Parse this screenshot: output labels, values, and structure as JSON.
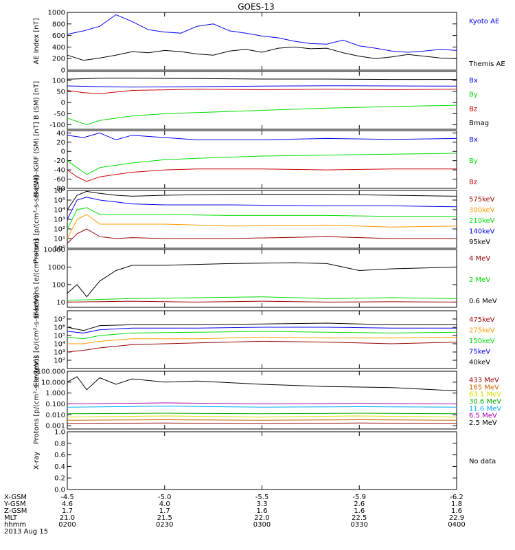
{
  "title": "GOES-13",
  "date": "2013 Aug 15",
  "colors": {
    "black": "#000000",
    "blue": "#0000ee",
    "green": "#00dd00",
    "red": "#cc0000",
    "orange": "#ff9900",
    "yellow": "#dddd00",
    "cyan": "#00aaff",
    "purple": "#aa00aa",
    "darkred": "#990000",
    "darkgreen": "#00aa00",
    "brown": "#cc6600"
  },
  "ephemeris": {
    "labels": [
      "X-GSM",
      "Y-GSM",
      "Z-GSM",
      "MLT",
      "hhmm"
    ],
    "columns": [
      {
        "values": [
          "-4.5",
          "4.6",
          "1.7",
          "21.0",
          "0200"
        ]
      },
      {
        "values": [
          "-5.0",
          "4.0",
          "1.7",
          "21.5",
          "0230"
        ]
      },
      {
        "values": [
          "-5.5",
          "3.3",
          "1.6",
          "22.0",
          "0300"
        ]
      },
      {
        "values": [
          "-5.9",
          "2.6",
          "1.6",
          "22.5",
          "0330"
        ]
      },
      {
        "values": [
          "-6.2",
          "1.8",
          "1.6",
          "22.9",
          "0400"
        ]
      }
    ]
  },
  "chart_data": [
    {
      "type": "line",
      "panel": "ae",
      "ylabel": "AE Index [nT]",
      "ylim": [
        0,
        1000
      ],
      "scale": "linear",
      "ticks": [
        {
          "v": 0,
          "label": "0"
        },
        {
          "v": 200,
          "label": "200"
        },
        {
          "v": 400,
          "label": "400"
        },
        {
          "v": 600,
          "label": "600"
        },
        {
          "v": 800,
          "label": "800"
        },
        {
          "v": 1000,
          "label": "1000"
        }
      ],
      "series": [
        {
          "name": "Kyoto AE",
          "color": "blue",
          "x": [
            0,
            5,
            10,
            15,
            20,
            25,
            30,
            35,
            40,
            45,
            50,
            55,
            60,
            65,
            70,
            75,
            80,
            85,
            90,
            95,
            100,
            105,
            110,
            115,
            120
          ],
          "y": [
            620,
            680,
            760,
            960,
            840,
            700,
            660,
            640,
            760,
            800,
            680,
            640,
            590,
            560,
            500,
            460,
            450,
            520,
            420,
            380,
            330,
            310,
            330,
            360,
            340
          ]
        },
        {
          "name": "Themis AE",
          "color": "black",
          "x": [
            0,
            5,
            10,
            15,
            20,
            25,
            30,
            35,
            40,
            45,
            50,
            55,
            60,
            65,
            70,
            75,
            80,
            85,
            90,
            95,
            100,
            105,
            110,
            115,
            120
          ],
          "y": [
            260,
            170,
            210,
            260,
            320,
            300,
            340,
            320,
            280,
            260,
            330,
            360,
            310,
            380,
            400,
            370,
            380,
            300,
            240,
            200,
            230,
            270,
            240,
            210,
            200
          ]
        }
      ]
    },
    {
      "type": "line",
      "panel": "bsm",
      "ylabel": "B (SM) [nT]",
      "ylim": [
        -120,
        140
      ],
      "scale": "linear",
      "ticks": [
        {
          "v": -100,
          "label": "-100"
        },
        {
          "v": -50,
          "label": "-50"
        },
        {
          "v": 0,
          "label": "0"
        },
        {
          "v": 50,
          "label": "50"
        },
        {
          "v": 100,
          "label": "100"
        }
      ],
      "series": [
        {
          "name": "Bx",
          "color": "blue",
          "x": [
            0,
            10,
            20,
            40,
            60,
            80,
            100,
            120
          ],
          "y": [
            75,
            72,
            70,
            72,
            74,
            76,
            75,
            74
          ]
        },
        {
          "name": "By",
          "color": "green",
          "x": [
            0,
            3,
            6,
            10,
            20,
            30,
            40,
            60,
            80,
            100,
            120
          ],
          "y": [
            -70,
            -85,
            -100,
            -80,
            -60,
            -50,
            -45,
            -35,
            -25,
            -18,
            -12
          ]
        },
        {
          "name": "Bz",
          "color": "red",
          "x": [
            0,
            5,
            10,
            20,
            40,
            60,
            80,
            100,
            120
          ],
          "y": [
            55,
            45,
            40,
            55,
            60,
            58,
            60,
            58,
            60
          ]
        },
        {
          "name": "Bmag",
          "color": "black",
          "x": [
            0,
            10,
            20,
            40,
            60,
            80,
            100,
            120
          ],
          "y": [
            105,
            110,
            110,
            108,
            106,
            106,
            104,
            104
          ]
        }
      ]
    },
    {
      "type": "line",
      "panel": "bigrf",
      "ylabel": "B (SM)-IGRF (SM) [nT]",
      "ylim": [
        -80,
        45
      ],
      "scale": "linear",
      "ticks": [
        {
          "v": -80,
          "label": "-80"
        },
        {
          "v": -60,
          "label": "-60"
        },
        {
          "v": -40,
          "label": "-40"
        },
        {
          "v": -20,
          "label": "-20"
        },
        {
          "v": 0,
          "label": "0"
        },
        {
          "v": 20,
          "label": "20"
        },
        {
          "v": 40,
          "label": "40"
        }
      ],
      "series": [
        {
          "name": "Bx",
          "color": "blue",
          "x": [
            0,
            5,
            10,
            15,
            20,
            30,
            40,
            60,
            80,
            100,
            120
          ],
          "y": [
            35,
            30,
            40,
            25,
            35,
            30,
            25,
            25,
            28,
            26,
            28
          ]
        },
        {
          "name": "By",
          "color": "green",
          "x": [
            0,
            3,
            6,
            10,
            15,
            20,
            30,
            40,
            60,
            80,
            100,
            120
          ],
          "y": [
            -20,
            -35,
            -50,
            -35,
            -30,
            -25,
            -18,
            -15,
            -10,
            -8,
            -6,
            -4
          ]
        },
        {
          "name": "Bz",
          "color": "red",
          "x": [
            0,
            3,
            6,
            10,
            15,
            20,
            30,
            40,
            60,
            80,
            100,
            120
          ],
          "y": [
            -40,
            -55,
            -65,
            -55,
            -50,
            -45,
            -40,
            -38,
            -38,
            -40,
            -38,
            -38
          ]
        }
      ]
    },
    {
      "type": "line",
      "panel": "protons",
      "ylabel": "Protons [p/(cm²-s-sr-keV)]",
      "ylim": [
        0,
        6
      ],
      "scale": "log10",
      "ticks": [
        {
          "v": 0,
          "label": "10⁰"
        },
        {
          "v": 1,
          "label": "10¹"
        },
        {
          "v": 2,
          "label": "10²"
        },
        {
          "v": 3,
          "label": "10³"
        },
        {
          "v": 4,
          "label": "10⁴"
        },
        {
          "v": 5,
          "label": "10⁵"
        },
        {
          "v": 6,
          "label": "10⁶"
        }
      ],
      "series": [
        {
          "name": "575keV",
          "color": "darkred",
          "x": [
            0,
            3,
            6,
            10,
            15,
            20,
            30,
            50,
            80,
            100,
            120
          ],
          "y": [
            0.5,
            1.5,
            2,
            1.2,
            1,
            1.1,
            1,
            1,
            1.2,
            1,
            1
          ]
        },
        {
          "name": "300keV",
          "color": "orange",
          "x": [
            0,
            3,
            6,
            10,
            15,
            20,
            30,
            50,
            80,
            100,
            120
          ],
          "y": [
            1,
            3,
            3.5,
            2.5,
            2.5,
            2.5,
            2.5,
            2.3,
            2.4,
            2.2,
            2.3
          ]
        },
        {
          "name": "210keV",
          "color": "green",
          "x": [
            0,
            3,
            6,
            10,
            15,
            20,
            30,
            50,
            80,
            100,
            120
          ],
          "y": [
            2,
            4,
            4.2,
            3.5,
            3.5,
            3.5,
            3.5,
            3.4,
            3.4,
            3.3,
            3.3
          ]
        },
        {
          "name": "140keV",
          "color": "blue",
          "x": [
            0,
            3,
            6,
            10,
            15,
            20,
            30,
            50,
            80,
            100,
            120
          ],
          "y": [
            3,
            5,
            5.3,
            5,
            4.8,
            4.6,
            4.5,
            4.5,
            4.4,
            4.4,
            4.3
          ]
        },
        {
          "name": "95keV",
          "color": "black",
          "x": [
            0,
            3,
            6,
            10,
            15,
            20,
            30,
            50,
            80,
            100,
            120
          ],
          "y": [
            4,
            5.5,
            5.9,
            5.7,
            5.5,
            5.4,
            5.5,
            5.6,
            5.6,
            5.5,
            5.4
          ]
        }
      ]
    },
    {
      "type": "line",
      "panel": "electrons_mev",
      "ylabel": "Electrons [e/(cm²-s-sr)]",
      "ylim": [
        0.7,
        4
      ],
      "scale": "log10",
      "ticks": [
        {
          "v": 1,
          "label": "10"
        },
        {
          "v": 2,
          "label": "100"
        },
        {
          "v": 3,
          "label": "1000"
        },
        {
          "v": 4,
          "label": "10000"
        }
      ],
      "series": [
        {
          "name": "4 MeV",
          "color": "darkred",
          "x": [
            0,
            20,
            40,
            60,
            80,
            100,
            120
          ],
          "y": [
            1.0,
            1.05,
            1.0,
            1.05,
            1.0,
            1.02,
            1.0
          ]
        },
        {
          "name": "2 MeV",
          "color": "green",
          "x": [
            0,
            20,
            40,
            60,
            80,
            100,
            120
          ],
          "y": [
            1.1,
            1.2,
            1.25,
            1.3,
            1.2,
            1.25,
            1.2
          ]
        },
        {
          "name": "0.6 MeV",
          "color": "black",
          "x": [
            0,
            3,
            6,
            10,
            15,
            20,
            30,
            50,
            70,
            80,
            90,
            100,
            110,
            120
          ],
          "y": [
            1.5,
            2,
            1.3,
            2.2,
            2.8,
            3.1,
            3.1,
            3.2,
            3.25,
            3.2,
            2.8,
            2.9,
            2.95,
            3.0
          ]
        }
      ]
    },
    {
      "type": "line",
      "panel": "electrons_kev",
      "ylabel": "Electrons [e/(cm²-s-sr-keV)]",
      "ylim": [
        1,
        8
      ],
      "scale": "log10",
      "ticks": [
        {
          "v": 2,
          "label": "10²"
        },
        {
          "v": 3,
          "label": "10³"
        },
        {
          "v": 4,
          "label": "10⁴"
        },
        {
          "v": 5,
          "label": "10⁵"
        },
        {
          "v": 6,
          "label": "10⁶"
        },
        {
          "v": 7,
          "label": "10⁷"
        }
      ],
      "series": [
        {
          "name": "475keV",
          "color": "darkred",
          "x": [
            0,
            5,
            10,
            20,
            40,
            60,
            80,
            100,
            120
          ],
          "y": [
            3.0,
            3.2,
            3.5,
            3.9,
            4.1,
            4.3,
            4.2,
            4.0,
            4.2
          ]
        },
        {
          "name": "275keV",
          "color": "orange",
          "x": [
            0,
            5,
            10,
            20,
            40,
            60,
            80,
            100,
            120
          ],
          "y": [
            4.0,
            4.0,
            4.3,
            4.6,
            4.6,
            4.8,
            4.7,
            4.7,
            4.8
          ]
        },
        {
          "name": "150keV",
          "color": "green",
          "x": [
            0,
            5,
            10,
            20,
            40,
            60,
            80,
            100,
            120
          ],
          "y": [
            4.8,
            4.6,
            5.0,
            5.3,
            5.4,
            5.5,
            5.4,
            5.3,
            5.4
          ]
        },
        {
          "name": "75keV",
          "color": "blue",
          "x": [
            0,
            5,
            10,
            20,
            40,
            60,
            80,
            100,
            120
          ],
          "y": [
            5.5,
            5.3,
            5.7,
            5.9,
            5.9,
            6.0,
            6.0,
            5.9,
            5.9
          ]
        },
        {
          "name": "40keV",
          "color": "black",
          "x": [
            0,
            5,
            10,
            20,
            40,
            60,
            80,
            100,
            120
          ],
          "y": [
            6.0,
            5.6,
            6.2,
            6.3,
            6.3,
            6.4,
            6.5,
            6.3,
            6.3
          ]
        }
      ]
    },
    {
      "type": "line",
      "panel": "protons_mev",
      "ylabel": "Protons [p/(cm²-s-sr-keV)]",
      "ylim": [
        -3.3,
        2
      ],
      "scale": "log10",
      "ticks": [
        {
          "v": -3,
          "label": "0.001"
        },
        {
          "v": -2,
          "label": "0.010"
        },
        {
          "v": -1,
          "label": "0.100"
        },
        {
          "v": 0,
          "label": "1.000"
        },
        {
          "v": 1,
          "label": "10.000"
        },
        {
          "v": 2,
          "label": "100.000"
        }
      ],
      "series": [
        {
          "name": "433 MeV",
          "color": "darkred",
          "x": [
            0,
            30,
            60,
            90,
            120
          ],
          "y": [
            -2.8,
            -2.75,
            -2.8,
            -2.75,
            -2.8
          ]
        },
        {
          "name": "165 MeV",
          "color": "brown",
          "x": [
            0,
            30,
            60,
            90,
            120
          ],
          "y": [
            -2.5,
            -2.45,
            -2.5,
            -2.45,
            -2.5
          ]
        },
        {
          "name": "63.1 MeV",
          "color": "yellow",
          "x": [
            0,
            30,
            60,
            90,
            120
          ],
          "y": [
            -2.2,
            -2.1,
            -2.2,
            -2.1,
            -2.2
          ]
        },
        {
          "name": "30.6 MeV",
          "color": "darkgreen",
          "x": [
            0,
            30,
            60,
            90,
            120
          ],
          "y": [
            -1.9,
            -1.85,
            -1.9,
            -1.85,
            -1.9
          ]
        },
        {
          "name": "11.6 MeV",
          "color": "cyan",
          "x": [
            0,
            30,
            60,
            90,
            120
          ],
          "y": [
            -1.3,
            -1.2,
            -1.3,
            -1.25,
            -1.3
          ]
        },
        {
          "name": "6.5 MeV",
          "color": "purple",
          "x": [
            0,
            30,
            60,
            90,
            120
          ],
          "y": [
            -1.0,
            -0.9,
            -1.0,
            -0.95,
            -1.0
          ]
        },
        {
          "name": "2.5 MeV",
          "color": "black",
          "x": [
            0,
            3,
            6,
            10,
            15,
            20,
            30,
            40,
            60,
            80,
            100,
            120
          ],
          "y": [
            1.0,
            1.5,
            0.3,
            1.4,
            0.8,
            1.3,
            1.0,
            1.1,
            0.8,
            0.6,
            0.5,
            0.2
          ]
        }
      ]
    },
    {
      "type": "line",
      "panel": "xray",
      "ylabel": "X-ray",
      "ylim": [
        0,
        1
      ],
      "scale": "linear",
      "ticks": [
        {
          "v": 0,
          "label": "0.0"
        },
        {
          "v": 0.2,
          "label": "0.2"
        },
        {
          "v": 0.4,
          "label": "0.4"
        },
        {
          "v": 0.6,
          "label": "0.6"
        },
        {
          "v": 0.8,
          "label": "0.8"
        },
        {
          "v": 1,
          "label": "1.0"
        }
      ],
      "note": "No data",
      "series": []
    }
  ]
}
